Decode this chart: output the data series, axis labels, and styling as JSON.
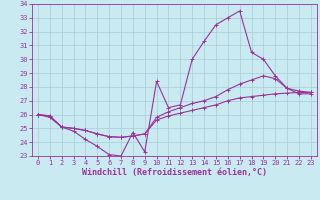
{
  "xlabel": "Windchill (Refroidissement éolien,°C)",
  "ylabel": "",
  "xlim": [
    -0.5,
    23.5
  ],
  "ylim": [
    23,
    34
  ],
  "xticks": [
    0,
    1,
    2,
    3,
    4,
    5,
    6,
    7,
    8,
    9,
    10,
    11,
    12,
    13,
    14,
    15,
    16,
    17,
    18,
    19,
    20,
    21,
    22,
    23
  ],
  "yticks": [
    23,
    24,
    25,
    26,
    27,
    28,
    29,
    30,
    31,
    32,
    33,
    34
  ],
  "background_color": "#c8eaf0",
  "grid_color": "#a8ccd8",
  "line_color": "#993399",
  "line1_x": [
    0,
    1,
    2,
    3,
    4,
    5,
    6,
    7,
    8,
    9,
    10,
    11,
    12,
    13,
    14,
    15,
    16,
    17,
    18,
    19,
    20,
    21,
    22,
    23
  ],
  "line1_y": [
    26.0,
    25.8,
    25.1,
    24.8,
    24.2,
    23.7,
    23.1,
    23.0,
    24.7,
    23.3,
    28.4,
    26.5,
    26.7,
    30.0,
    31.3,
    32.5,
    33.0,
    33.5,
    30.5,
    30.0,
    28.8,
    27.9,
    27.5,
    27.5
  ],
  "line2_x": [
    0,
    1,
    2,
    3,
    4,
    5,
    6,
    7,
    8,
    9,
    10,
    11,
    12,
    13,
    14,
    15,
    16,
    17,
    18,
    19,
    20,
    21,
    22,
    23
  ],
  "line2_y": [
    26.0,
    25.9,
    25.1,
    25.0,
    24.85,
    24.6,
    24.4,
    24.35,
    24.45,
    24.6,
    25.6,
    25.9,
    26.1,
    26.3,
    26.5,
    26.7,
    27.0,
    27.2,
    27.3,
    27.4,
    27.5,
    27.55,
    27.6,
    27.6
  ],
  "line3_x": [
    0,
    1,
    2,
    3,
    4,
    5,
    6,
    7,
    8,
    9,
    10,
    11,
    12,
    13,
    14,
    15,
    16,
    17,
    18,
    19,
    20,
    21,
    22,
    23
  ],
  "line3_y": [
    26.0,
    25.9,
    25.1,
    25.0,
    24.85,
    24.6,
    24.4,
    24.35,
    24.45,
    24.6,
    25.8,
    26.2,
    26.5,
    26.8,
    27.0,
    27.3,
    27.8,
    28.2,
    28.5,
    28.8,
    28.6,
    27.9,
    27.7,
    27.6
  ],
  "marker": "+",
  "markersize": 3,
  "linewidth": 0.8,
  "tick_fontsize": 5.0,
  "xlabel_fontsize": 6.0
}
